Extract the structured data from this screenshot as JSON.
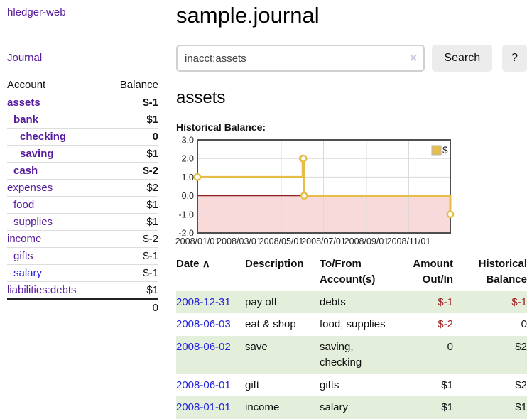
{
  "app": {
    "brand": "hledger-web",
    "nav_journal": "Journal"
  },
  "colors": {
    "purple_link": "#571c9d",
    "blue_link": "#2222dd",
    "negative_strong": "#9e1f1f",
    "negative_soft": "#c08383",
    "row_green": "#e3efda",
    "chart_gold": "#e7bd4a",
    "chart_negative_fill": "#f9dada",
    "chart_zero_line": "#8b1c1c",
    "chart_border": "#4f4f4f",
    "chart_grid": "#dadada"
  },
  "sidebar": {
    "headers": {
      "account": "Account",
      "balance": "Balance"
    },
    "accounts": [
      {
        "name": "assets",
        "indent": 0,
        "bold": true,
        "link": "purple",
        "balance": "$-1",
        "balance_style": "neg-strong"
      },
      {
        "name": "bank",
        "indent": 1,
        "bold": true,
        "link": "purple",
        "balance": "$1",
        "balance_style": "pos"
      },
      {
        "name": "checking",
        "indent": 2,
        "bold": true,
        "link": "purple",
        "balance": "0",
        "balance_style": "pos"
      },
      {
        "name": "saving",
        "indent": 2,
        "bold": true,
        "link": "purple",
        "balance": "$1",
        "balance_style": "pos"
      },
      {
        "name": "cash",
        "indent": 1,
        "bold": true,
        "link": "purple",
        "balance": "$-2",
        "balance_style": "neg-strong"
      },
      {
        "name": "expenses",
        "indent": 0,
        "bold": false,
        "link": "purple",
        "balance": "$2",
        "balance_style": "pos"
      },
      {
        "name": "food",
        "indent": 1,
        "bold": false,
        "link": "purple",
        "balance": "$1",
        "balance_style": "pos"
      },
      {
        "name": "supplies",
        "indent": 1,
        "bold": false,
        "link": "purple",
        "balance": "$1",
        "balance_style": "pos"
      },
      {
        "name": "income",
        "indent": 0,
        "bold": false,
        "link": "purple",
        "balance": "$-2",
        "balance_style": "neg-soft"
      },
      {
        "name": "gifts",
        "indent": 1,
        "bold": false,
        "link": "purple",
        "balance": "$-1",
        "balance_style": "neg-soft"
      },
      {
        "name": "salary",
        "indent": 1,
        "bold": false,
        "link": "blue",
        "balance": "$-1",
        "balance_style": "neg-soft"
      },
      {
        "name": "liabilities:debts",
        "indent": 0,
        "bold": false,
        "link": "purple",
        "balance": "$1",
        "balance_style": "pos"
      }
    ],
    "total": "0"
  },
  "header": {
    "title": "sample.journal"
  },
  "search": {
    "value": "inacct:assets",
    "clear_icon": "×",
    "button_label": "Search",
    "help_label": "?"
  },
  "register": {
    "heading": "assets",
    "chart_title": "Historical Balance:"
  },
  "chart_data": {
    "type": "line",
    "step": "after",
    "title": "Historical Balance:",
    "legend": [
      {
        "label": "$",
        "color": "#e7bd4a"
      }
    ],
    "legend_position": "top-right",
    "grid": true,
    "ylim": [
      -2.0,
      3.0
    ],
    "y_ticks": [
      3.0,
      2.0,
      1.0,
      0.0,
      -1.0,
      -2.0
    ],
    "y_tick_labels": [
      "3.0",
      "2.0",
      "1.0",
      "0.0",
      "-1.0",
      "-2.0"
    ],
    "x_ticks": [
      {
        "day": 0,
        "label": "2008/01/01"
      },
      {
        "day": 60,
        "label": "2008/03/01"
      },
      {
        "day": 121,
        "label": "2008/05/01"
      },
      {
        "day": 182,
        "label": "2008/07/01"
      },
      {
        "day": 244,
        "label": "2008/09/01"
      },
      {
        "day": 305,
        "label": "2008/11/01"
      }
    ],
    "xlim_days": [
      0,
      365
    ],
    "series": [
      {
        "name": "$",
        "points": [
          {
            "date": "2008-01-01",
            "day": 0,
            "value": 1.0
          },
          {
            "date": "2008-06-01",
            "day": 152,
            "value": 2.0
          },
          {
            "date": "2008-06-02",
            "day": 153,
            "value": 2.0
          },
          {
            "date": "2008-06-03",
            "day": 154,
            "value": 0.0
          },
          {
            "date": "2008-12-31",
            "day": 365,
            "value": -1.0
          }
        ]
      }
    ],
    "negative_region_shaded": true
  },
  "table": {
    "headers": {
      "date": "Date",
      "sort_icon": "∧",
      "description": "Description",
      "account": "To/From Account(s)",
      "amount": "Amount Out/In",
      "balance": "Historical Balance"
    },
    "rows": [
      {
        "date": "2008-12-31",
        "description": "pay off",
        "account": "debts",
        "amount": "$-1",
        "amount_neg": true,
        "balance": "$-1",
        "balance_neg": true,
        "green": true
      },
      {
        "date": "2008-06-03",
        "description": "eat & shop",
        "account": "food, supplies",
        "amount": "$-2",
        "amount_neg": true,
        "balance": "0",
        "balance_neg": false,
        "green": false
      },
      {
        "date": "2008-06-02",
        "description": "save",
        "account": "saving, checking",
        "amount": "0",
        "amount_neg": false,
        "balance": "$2",
        "balance_neg": false,
        "green": true
      },
      {
        "date": "2008-06-01",
        "description": "gift",
        "account": "gifts",
        "amount": "$1",
        "amount_neg": false,
        "balance": "$2",
        "balance_neg": false,
        "green": false
      },
      {
        "date": "2008-01-01",
        "description": "income",
        "account": "salary",
        "amount": "$1",
        "amount_neg": false,
        "balance": "$1",
        "balance_neg": false,
        "green": true
      }
    ]
  }
}
